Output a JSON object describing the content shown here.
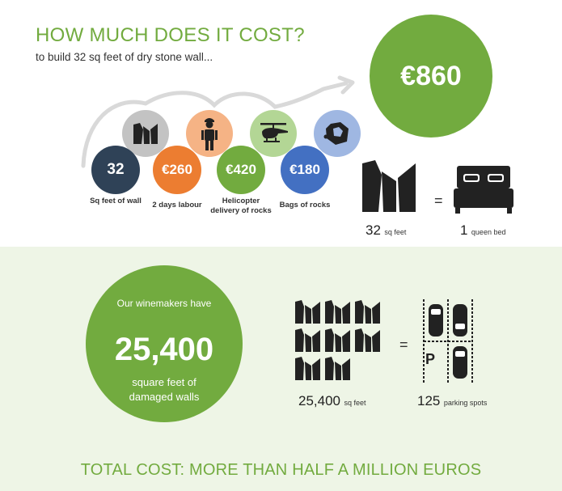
{
  "title": "HOW MUCH DOES IT COST?",
  "subtitle": "to build 32 sq feet of dry stone wall...",
  "total_price": "€860",
  "steps": [
    {
      "value": "32",
      "label": "Sq feet of wall",
      "color": "#2f4257",
      "icon": "wall-icon",
      "icon_bg": "#c3c3c3"
    },
    {
      "value": "€260",
      "label": "2 days labour",
      "color": "#ec7d31",
      "icon": "worker-icon",
      "icon_bg": "#f5b385"
    },
    {
      "value": "€420",
      "label_line1": "Helicopter",
      "label_line2": "delivery of rocks",
      "color": "#72ab3f",
      "icon": "helicopter-icon",
      "icon_bg": "#b3d695"
    },
    {
      "value": "€180",
      "label": "Bags of rocks",
      "color": "#4370c2",
      "icon": "rock-bag-icon",
      "icon_bg": "#9fb7e2"
    }
  ],
  "equiv1": {
    "left_num": "32",
    "left_unit": "sq feet",
    "equals": "=",
    "right_num": "1",
    "right_unit": "queen bed"
  },
  "damage": {
    "line1": "Our winemakers have",
    "number": "25,400",
    "line2": "square feet of",
    "line3": "damaged walls"
  },
  "equiv2": {
    "left_num": "25,400",
    "left_unit": "sq feet",
    "equals": "=",
    "right_num": "125",
    "right_unit": "parking spots",
    "parking_letter": "P"
  },
  "footer": "TOTAL COST: MORE THAN HALF A MILLION EUROS",
  "colors": {
    "accent": "#72ab3f",
    "bottom_bg": "#eef5e6"
  }
}
